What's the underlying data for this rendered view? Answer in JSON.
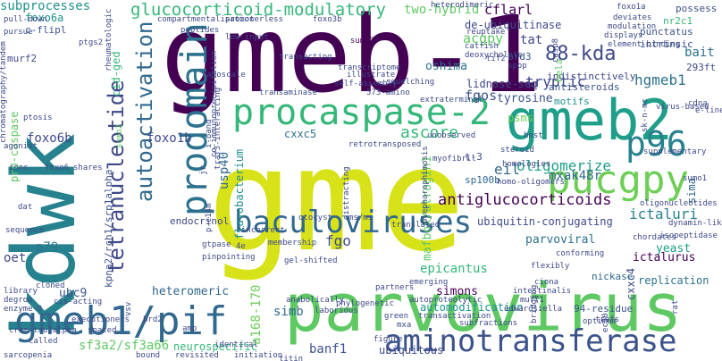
{
  "words": [
    {
      "text": "gme",
      "color": "#d8e219"
    },
    {
      "text": "gmeb-1",
      "color": "#440154"
    },
    {
      "text": "kdwk",
      "color": "#26828e"
    },
    {
      "text": "parvovirus",
      "color": "#5ec962"
    },
    {
      "text": "gmeb2",
      "color": "#1f9e89"
    },
    {
      "text": "gmeb1/pif",
      "color": "#31688e"
    },
    {
      "text": "procaspase-2",
      "color": "#35b779"
    },
    {
      "text": "pucgpy",
      "color": "#6ece58"
    },
    {
      "text": "aminotransferase",
      "color": "#3b528b"
    },
    {
      "text": "baculoviruses",
      "color": "#31688e"
    },
    {
      "text": "prodomain",
      "color": "#2c728e"
    },
    {
      "text": "tetranucleotide",
      "color": "#3e4989"
    },
    {
      "text": "p96",
      "color": "#26828e"
    },
    {
      "text": "glucocorticoid-modulatory",
      "color": "#35b779"
    },
    {
      "text": "autoactivation",
      "color": "#31688e"
    },
    {
      "text": "subprocesses",
      "color": "#21918c"
    },
    {
      "text": "88-kda",
      "color": "#3e4989"
    },
    {
      "text": "two-hybrid",
      "color": "#5ec962"
    },
    {
      "text": "antiglucocorticoids",
      "color": "#440154"
    },
    {
      "text": "ascore",
      "color": "#35b779"
    },
    {
      "text": "oligomerize",
      "color": "#1f9e89"
    },
    {
      "text": "mxak48r",
      "color": "#31688e"
    },
    {
      "text": "tryptic",
      "color": "#3e4989"
    },
    {
      "text": "ictaluri",
      "color": "#26828e"
    },
    {
      "text": "hgmeb1",
      "color": "#2c728e"
    },
    {
      "text": "fgos",
      "color": "#3b528b"
    },
    {
      "text": "foxo1b",
      "color": "#3e4989"
    },
    {
      "text": "usp40",
      "color": "#31688e"
    },
    {
      "text": "pucgpy-2",
      "color": "#440154"
    },
    {
      "text": "eil",
      "color": "#31688e"
    },
    {
      "text": "fgo",
      "color": "#3e4989"
    },
    {
      "text": "parvoviral",
      "color": "#2c728e"
    },
    {
      "text": "yeast",
      "color": "#1f9e89"
    },
    {
      "text": "a168-170",
      "color": "#6ece58"
    },
    {
      "text": "sf3a2/sf3a66",
      "color": "#5ec962"
    },
    {
      "text": "banf1",
      "color": "#3b528b"
    },
    {
      "text": "simb",
      "color": "#31688e"
    },
    {
      "text": "foxo6b",
      "color": "#3e4989"
    },
    {
      "text": "foxo6a",
      "color": "#21918c"
    },
    {
      "text": "cflarl",
      "color": "#440154"
    },
    {
      "text": "acgpy",
      "color": "#5ec962"
    },
    {
      "text": "tat",
      "color": "#3e4989"
    },
    {
      "text": "bait",
      "color": "#2c728e"
    },
    {
      "text": "flavobacterium",
      "color": "#21918c"
    },
    {
      "text": "epicantus",
      "color": "#35b779"
    },
    {
      "text": "heteromeric",
      "color": "#31688e"
    },
    {
      "text": "oshima",
      "color": "#2c728e"
    },
    {
      "text": "tyrosine",
      "color": "#3b528b"
    },
    {
      "text": "mafbox/atrogin1",
      "color": "#5ec962"
    },
    {
      "text": "cid-ged",
      "color": "#35b779"
    },
    {
      "text": "p79",
      "color": "#2c728e"
    },
    {
      "text": "oet",
      "color": "#3e4989"
    },
    {
      "text": "ubc9",
      "color": "#3b528b"
    },
    {
      "text": "simons",
      "color": "#440154"
    },
    {
      "text": "replication",
      "color": "#2c728e"
    },
    {
      "text": "endocrinol",
      "color": "#3e4989"
    },
    {
      "text": "automodification",
      "color": "#21918c"
    },
    {
      "text": "kpna2/rch1/srp1alpha",
      "color": "#3b528b"
    },
    {
      "text": "neurospecific",
      "color": "#35b779"
    },
    {
      "text": "ubiquitin-conjugating",
      "color": "#3e4989"
    },
    {
      "text": "ictalurus",
      "color": "#440154"
    },
    {
      "text": "sima",
      "color": "#31688e"
    },
    {
      "text": "cxxc5",
      "color": "#2c728e"
    },
    {
      "text": "cxxc4",
      "color": "#3e4989"
    },
    {
      "text": "psms",
      "color": "#6ece58"
    },
    {
      "text": "sp100b",
      "color": "#31688e"
    },
    {
      "text": "lidnase-seq",
      "color": "#3e4989"
    },
    {
      "text": "motifs",
      "color": "#21918c"
    },
    {
      "text": "antisteroids",
      "color": "#3b528b"
    },
    {
      "text": "indistinctively",
      "color": "#3e4989"
    },
    {
      "text": "de-ubiquitinase",
      "color": "#3e4989"
    },
    {
      "text": "brd3",
      "color": "#3b528b"
    },
    {
      "text": "hela",
      "color": "#5ec962"
    },
    {
      "text": "293ft",
      "color": "#3e4989"
    },
    {
      "text": "c-flipl",
      "color": "#3b528b"
    },
    {
      "text": "murf2",
      "color": "#3e4989"
    },
    {
      "text": "pro-caspase",
      "color": "#5ec962"
    },
    {
      "text": "ubiquitous",
      "color": "#3e4989"
    },
    {
      "text": "94-residue",
      "color": "#3b528b"
    },
    {
      "text": "t-3",
      "color": "#3e4989"
    },
    {
      "text": "nickase",
      "color": "#31688e"
    },
    {
      "text": "possess",
      "color": "#3b528b"
    },
    {
      "text": "punctatus",
      "color": "#3b528b"
    },
    {
      "text": "intrinsic",
      "color": "#3b528b"
    },
    {
      "text": "nr2c1",
      "color": "#35b779"
    },
    {
      "text": "sumo2",
      "color": "#5ec962"
    },
    {
      "text": "sumo3",
      "color": "#440154"
    },
    {
      "text": "pull-down",
      "color": "#3e4989"
    },
    {
      "text": "pursue",
      "color": "#3b528b"
    },
    {
      "text": "ptgs2",
      "color": "#3e4989"
    },
    {
      "text": "compartmentalisation",
      "color": "#3e4989"
    },
    {
      "text": "promoterless",
      "color": "#3e4989"
    },
    {
      "text": "heterodimeric",
      "color": "#3e4989"
    },
    {
      "text": "rheumatologic",
      "color": "#3e4989"
    },
    {
      "text": "foxo3b",
      "color": "#3e4989"
    },
    {
      "text": "peptides",
      "color": "#3e4989"
    },
    {
      "text": "transcriptome",
      "color": "#3e4989"
    },
    {
      "text": "illustrate",
      "color": "#3e4989"
    },
    {
      "text": "nanoscale",
      "color": "#3e4989"
    },
    {
      "text": "self-assembly",
      "color": "#3e4989"
    },
    {
      "text": "transacting",
      "color": "#3e4989"
    },
    {
      "text": "573-amino",
      "color": "#3e4989"
    },
    {
      "text": "squelching",
      "color": "#3e4989"
    },
    {
      "text": "transaminase",
      "color": "#3e4989"
    },
    {
      "text": "extraterminal",
      "color": "#3e4989"
    },
    {
      "text": "ptosis",
      "color": "#3e4989"
    },
    {
      "text": "agonist",
      "color": "#3e4989"
    },
    {
      "text": "foxo6",
      "color": "#3e4989"
    },
    {
      "text": "shares",
      "color": "#3e4989"
    },
    {
      "text": "ions",
      "color": "#3e4989"
    },
    {
      "text": "sequence",
      "color": "#3e4989"
    },
    {
      "text": "dat",
      "color": "#3e4989"
    },
    {
      "text": "library",
      "color": "#3e4989"
    },
    {
      "text": "degron",
      "color": "#3e4989"
    },
    {
      "text": "enzyme-9",
      "color": "#3e4989"
    },
    {
      "text": "cloned",
      "color": "#3e4989"
    },
    {
      "text": "cis-acting",
      "color": "#3e4989"
    },
    {
      "text": "crem-tau2alpha",
      "color": "#3e4989"
    },
    {
      "text": "sarcopenia",
      "color": "#3e4989"
    },
    {
      "text": "executioners",
      "color": "#3e4989"
    },
    {
      "text": "brd2",
      "color": "#3e4989"
    },
    {
      "text": "amp",
      "color": "#3e4989"
    },
    {
      "text": "bound",
      "color": "#3e4989"
    },
    {
      "text": "revisited",
      "color": "#3e4989"
    },
    {
      "text": "identical",
      "color": "#3e4989"
    },
    {
      "text": "initiation",
      "color": "#3e4989"
    },
    {
      "text": "titin",
      "color": "#3e4989"
    },
    {
      "text": "mxa",
      "color": "#3e4989"
    },
    {
      "text": "figure",
      "color": "#3e4989"
    },
    {
      "text": "green",
      "color": "#3e4989"
    },
    {
      "text": "transactivation",
      "color": "#3e4989"
    },
    {
      "text": "subfractions",
      "color": "#3e4989"
    },
    {
      "text": "bridging",
      "color": "#3e4989"
    },
    {
      "text": "optimum",
      "color": "#3e4989"
    },
    {
      "text": "ec50",
      "color": "#3e4989"
    },
    {
      "text": "rat",
      "color": "#3e4989"
    },
    {
      "text": "murf1",
      "color": "#3e4989"
    },
    {
      "text": "edwardsiella",
      "color": "#3e4989"
    },
    {
      "text": "intestinalis",
      "color": "#3e4989"
    },
    {
      "text": "ciona",
      "color": "#3e4989"
    },
    {
      "text": "flexibly",
      "color": "#3e4989"
    },
    {
      "text": "conforming",
      "color": "#3e4989"
    },
    {
      "text": "isopeptidase",
      "color": "#3e4989"
    },
    {
      "text": "dynamin-like",
      "color": "#3e4989"
    },
    {
      "text": "sumo1",
      "color": "#3e4989"
    },
    {
      "text": "oligonucleotides",
      "color": "#3e4989"
    },
    {
      "text": "gtpase",
      "color": "#3e4989"
    },
    {
      "text": "pinpointing",
      "color": "#3e4989"
    },
    {
      "text": "membership",
      "color": "#3e4989"
    },
    {
      "text": "gel-shifted",
      "color": "#3e4989"
    },
    {
      "text": "partners",
      "color": "#3e4989"
    },
    {
      "text": "emerging",
      "color": "#3e4989"
    },
    {
      "text": "anabolically",
      "color": "#3e4989"
    },
    {
      "text": "phylogenetic",
      "color": "#3e4989"
    },
    {
      "text": "laborious",
      "color": "#3e4989"
    },
    {
      "text": "autoproteolytic",
      "color": "#3e4989"
    },
    {
      "text": "chromatography/tandem",
      "color": "#3e4989"
    },
    {
      "text": "co-immunoprecipitation",
      "color": "#3e4989"
    },
    {
      "text": "catfish",
      "color": "#3e4989"
    },
    {
      "text": "deoxycholate",
      "color": "#3e4989"
    },
    {
      "text": "reuptake",
      "color": "#3e4989"
    },
    {
      "text": "spop",
      "color": "#3e4989"
    },
    {
      "text": "deviates",
      "color": "#3e4989"
    },
    {
      "text": "modulation",
      "color": "#3e4989"
    },
    {
      "text": "displays",
      "color": "#3e4989"
    },
    {
      "text": "element-binding",
      "color": "#3e4989"
    },
    {
      "text": "virus-based",
      "color": "#3e4989"
    },
    {
      "text": "supplementary",
      "color": "#3e4989"
    },
    {
      "text": "homologies",
      "color": "#3e4989"
    },
    {
      "text": "homo-oligomers",
      "color": "#3e4989"
    },
    {
      "text": "unobserved",
      "color": "#3e4989"
    },
    {
      "text": "retrotransposed",
      "color": "#3e4989"
    },
    {
      "text": "myofibril",
      "color": "#3e4989"
    },
    {
      "text": "blepharophimosis",
      "color": "#3e4989"
    },
    {
      "text": "translated",
      "color": "#3e4989"
    },
    {
      "text": "distracting",
      "color": "#3e4989"
    },
    {
      "text": "otocyst",
      "color": "#3e4989"
    },
    {
      "text": "incorrect",
      "color": "#3e4989"
    },
    {
      "text": "trafs",
      "color": "#3e4989"
    },
    {
      "text": "chordates",
      "color": "#3e4989"
    },
    {
      "text": "steroid",
      "color": "#3e4989"
    },
    {
      "text": "host",
      "color": "#3e4989"
    },
    {
      "text": "ms/ms",
      "color": "#3e4989"
    },
    {
      "text": "tif2",
      "color": "#3e4989"
    },
    {
      "text": "casp8",
      "color": "#3e4989"
    },
    {
      "text": "low-input",
      "color": "#3e4989"
    },
    {
      "text": "4e",
      "color": "#3e4989"
    },
    {
      "text": "jr",
      "color": "#3e4989"
    },
    {
      "text": "called",
      "color": "#3e4989"
    },
    {
      "text": "cdna",
      "color": "#3e4989"
    },
    {
      "text": "sk-n-mc",
      "color": "#3e4989"
    },
    {
      "text": "e-line",
      "color": "#3e4989"
    },
    {
      "text": "foxo1a",
      "color": "#3e4989"
    },
    {
      "text": "spaced",
      "color": "#3e4989"
    },
    {
      "text": "i-band",
      "color": "#3e4989"
    },
    {
      "text": "traf3-interacting",
      "color": "#3e4989"
    },
    {
      "text": "p-c14m",
      "color": "#3e4989"
    },
    {
      "text": "vsv",
      "color": "#3e4989"
    },
    {
      "text": "eukaryotic",
      "color": "#3e4989"
    }
  ]
}
